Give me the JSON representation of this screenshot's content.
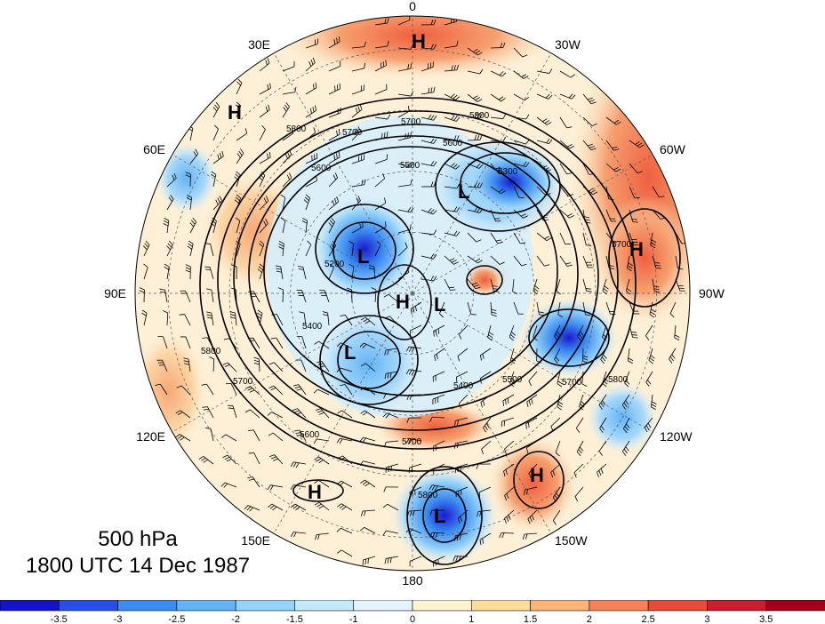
{
  "caption": {
    "level": "500 hPa",
    "time": "1800 UTC 14 Dec 1987"
  },
  "longitude_labels": [
    "0",
    "30W",
    "60W",
    "90W",
    "120W",
    "150W",
    "180",
    "150E",
    "120E",
    "90E",
    "60E",
    "30E"
  ],
  "height_contour_labels": [
    "5800",
    "5700",
    "5600",
    "5500",
    "5400",
    "5300",
    "5200"
  ],
  "pressure_centers": [
    {
      "type": "H"
    },
    {
      "type": "H"
    },
    {
      "type": "L"
    },
    {
      "type": "H"
    },
    {
      "type": "L"
    },
    {
      "type": "H"
    },
    {
      "type": "L"
    },
    {
      "type": "L"
    },
    {
      "type": "H"
    },
    {
      "type": "H"
    },
    {
      "type": "L"
    }
  ],
  "colorbar": {
    "tick_labels": [
      "-3.5",
      "-3",
      "-2.5",
      "-2",
      "-1.5",
      "-1",
      "0",
      "1",
      "1.5",
      "2",
      "2.5",
      "3",
      "3.5"
    ],
    "colors": [
      "#1414c8",
      "#2850e6",
      "#3c8cf0",
      "#64b4f5",
      "#96d2fa",
      "#c4e8fc",
      "#e4f4fe",
      "#fff4d2",
      "#fddc9c",
      "#fbb478",
      "#f5825a",
      "#e64b3c",
      "#c81e32",
      "#a0001e"
    ]
  },
  "colors": {
    "contour": "#000000",
    "background": "#ffffff"
  }
}
